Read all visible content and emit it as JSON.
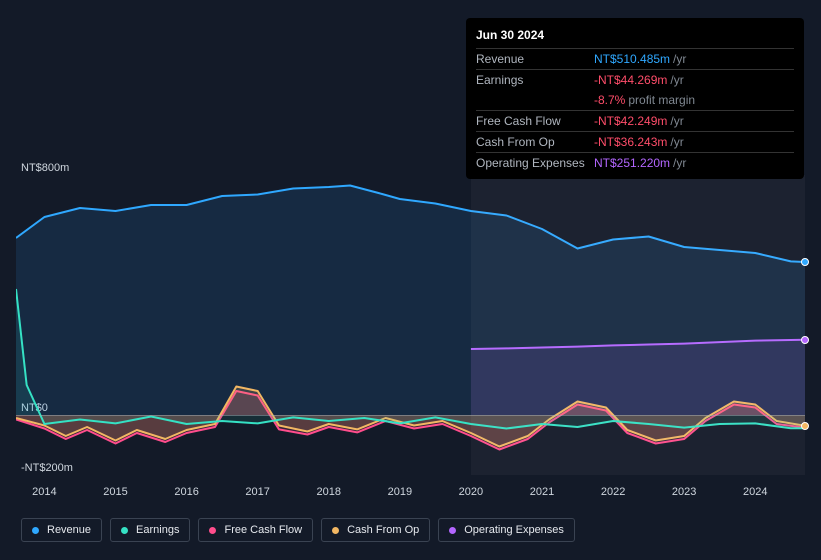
{
  "tooltip": {
    "date": "Jun 30 2024",
    "rows": [
      {
        "label": "Revenue",
        "value": "NT$510.485m",
        "suffix": "/yr",
        "color": "#2fa8ff"
      },
      {
        "label": "Earnings",
        "value": "-NT$44.269m",
        "suffix": "/yr",
        "color": "#ff4d6a",
        "sub": {
          "value": "-8.7%",
          "suffix": "profit margin",
          "color": "#ff4d6a"
        }
      },
      {
        "label": "Free Cash Flow",
        "value": "-NT$42.249m",
        "suffix": "/yr",
        "color": "#ff4d6a"
      },
      {
        "label": "Cash From Op",
        "value": "-NT$36.243m",
        "suffix": "/yr",
        "color": "#ff4d6a"
      },
      {
        "label": "Operating Expenses",
        "value": "NT$251.220m",
        "suffix": "/yr",
        "color": "#b366ff"
      }
    ]
  },
  "chart": {
    "type": "area",
    "background_color": "#131a28",
    "grid_color": "#2a3240",
    "text_color": "#cfd6de",
    "x_range": [
      2013.6,
      2024.7
    ],
    "y_range_m": [
      -200,
      800
    ],
    "y_ticks": [
      {
        "v": 800,
        "label": "NT$800m"
      },
      {
        "v": 0,
        "label": "NT$0"
      },
      {
        "v": -200,
        "label": "-NT$200m"
      }
    ],
    "x_ticks": [
      2014,
      2015,
      2016,
      2017,
      2018,
      2019,
      2020,
      2021,
      2022,
      2023,
      2024
    ],
    "highlight_band_x": [
      2020.0,
      2024.7
    ],
    "series": {
      "revenue": {
        "color": "#2fa8ff",
        "fill": "rgba(47,168,255,0.12)",
        "line_width": 2,
        "points": [
          [
            2013.6,
            590
          ],
          [
            2014.0,
            660
          ],
          [
            2014.5,
            690
          ],
          [
            2015.0,
            680
          ],
          [
            2015.5,
            700
          ],
          [
            2016.0,
            700
          ],
          [
            2016.5,
            730
          ],
          [
            2017.0,
            735
          ],
          [
            2017.5,
            755
          ],
          [
            2018.0,
            760
          ],
          [
            2018.3,
            765
          ],
          [
            2018.7,
            740
          ],
          [
            2019.0,
            720
          ],
          [
            2019.5,
            705
          ],
          [
            2020.0,
            680
          ],
          [
            2020.5,
            665
          ],
          [
            2021.0,
            620
          ],
          [
            2021.5,
            555
          ],
          [
            2022.0,
            585
          ],
          [
            2022.5,
            595
          ],
          [
            2023.0,
            560
          ],
          [
            2023.5,
            550
          ],
          [
            2024.0,
            540
          ],
          [
            2024.5,
            512
          ],
          [
            2024.7,
            510
          ]
        ]
      },
      "op_exp": {
        "color": "#b366ff",
        "fill": "rgba(179,102,255,0.12)",
        "line_width": 2,
        "points": [
          [
            2020.0,
            220
          ],
          [
            2020.5,
            222
          ],
          [
            2021.0,
            225
          ],
          [
            2021.5,
            228
          ],
          [
            2022.0,
            232
          ],
          [
            2022.5,
            235
          ],
          [
            2023.0,
            238
          ],
          [
            2023.5,
            243
          ],
          [
            2024.0,
            248
          ],
          [
            2024.5,
            250
          ],
          [
            2024.7,
            251
          ]
        ]
      },
      "earnings": {
        "color": "#35e1c4",
        "fill": "rgba(53,225,196,0.10)",
        "line_width": 2,
        "points": [
          [
            2013.6,
            420
          ],
          [
            2013.75,
            100
          ],
          [
            2014.0,
            -30
          ],
          [
            2014.5,
            -15
          ],
          [
            2015.0,
            -28
          ],
          [
            2015.5,
            -5
          ],
          [
            2016.0,
            -30
          ],
          [
            2016.5,
            -20
          ],
          [
            2017.0,
            -28
          ],
          [
            2017.5,
            -8
          ],
          [
            2018.0,
            -20
          ],
          [
            2018.5,
            -10
          ],
          [
            2019.0,
            -28
          ],
          [
            2019.5,
            -8
          ],
          [
            2020.0,
            -30
          ],
          [
            2020.5,
            -45
          ],
          [
            2021.0,
            -30
          ],
          [
            2021.5,
            -40
          ],
          [
            2022.0,
            -20
          ],
          [
            2022.5,
            -30
          ],
          [
            2023.0,
            -42
          ],
          [
            2023.5,
            -30
          ],
          [
            2024.0,
            -28
          ],
          [
            2024.5,
            -44
          ],
          [
            2024.7,
            -44
          ]
        ]
      },
      "cash_from_op": {
        "color": "#f2b763",
        "fill": "rgba(242,183,99,0.18)",
        "line_width": 2,
        "points": [
          [
            2013.6,
            -10
          ],
          [
            2014.0,
            -35
          ],
          [
            2014.3,
            -70
          ],
          [
            2014.6,
            -40
          ],
          [
            2015.0,
            -85
          ],
          [
            2015.3,
            -50
          ],
          [
            2015.7,
            -80
          ],
          [
            2016.0,
            -50
          ],
          [
            2016.4,
            -30
          ],
          [
            2016.7,
            95
          ],
          [
            2017.0,
            80
          ],
          [
            2017.3,
            -35
          ],
          [
            2017.7,
            -55
          ],
          [
            2018.0,
            -30
          ],
          [
            2018.4,
            -48
          ],
          [
            2018.8,
            -10
          ],
          [
            2019.2,
            -35
          ],
          [
            2019.6,
            -20
          ],
          [
            2020.0,
            -60
          ],
          [
            2020.4,
            -105
          ],
          [
            2020.8,
            -70
          ],
          [
            2021.1,
            -15
          ],
          [
            2021.5,
            45
          ],
          [
            2021.9,
            25
          ],
          [
            2022.2,
            -50
          ],
          [
            2022.6,
            -85
          ],
          [
            2023.0,
            -70
          ],
          [
            2023.3,
            -10
          ],
          [
            2023.7,
            45
          ],
          [
            2024.0,
            35
          ],
          [
            2024.3,
            -20
          ],
          [
            2024.7,
            -36
          ]
        ]
      },
      "fcf": {
        "color": "#ff4d8c",
        "fill": "rgba(255,77,140,0.15)",
        "line_width": 2,
        "points": [
          [
            2013.6,
            -15
          ],
          [
            2014.0,
            -45
          ],
          [
            2014.3,
            -80
          ],
          [
            2014.6,
            -50
          ],
          [
            2015.0,
            -95
          ],
          [
            2015.3,
            -60
          ],
          [
            2015.7,
            -90
          ],
          [
            2016.0,
            -60
          ],
          [
            2016.4,
            -40
          ],
          [
            2016.7,
            80
          ],
          [
            2017.0,
            65
          ],
          [
            2017.3,
            -48
          ],
          [
            2017.7,
            -65
          ],
          [
            2018.0,
            -40
          ],
          [
            2018.4,
            -58
          ],
          [
            2018.8,
            -20
          ],
          [
            2019.2,
            -45
          ],
          [
            2019.6,
            -30
          ],
          [
            2020.0,
            -70
          ],
          [
            2020.4,
            -115
          ],
          [
            2020.8,
            -80
          ],
          [
            2021.1,
            -25
          ],
          [
            2021.5,
            35
          ],
          [
            2021.9,
            15
          ],
          [
            2022.2,
            -60
          ],
          [
            2022.6,
            -95
          ],
          [
            2023.0,
            -80
          ],
          [
            2023.3,
            -20
          ],
          [
            2023.7,
            35
          ],
          [
            2024.0,
            25
          ],
          [
            2024.3,
            -30
          ],
          [
            2024.7,
            -42
          ]
        ]
      }
    },
    "end_dots": [
      {
        "series": "revenue",
        "color": "#2fa8ff"
      },
      {
        "series": "op_exp",
        "color": "#b366ff"
      },
      {
        "series": "cash_from_op",
        "color": "#f2b763"
      }
    ]
  },
  "legend": [
    {
      "label": "Revenue",
      "color": "#2fa8ff"
    },
    {
      "label": "Earnings",
      "color": "#35e1c4"
    },
    {
      "label": "Free Cash Flow",
      "color": "#ff4d8c"
    },
    {
      "label": "Cash From Op",
      "color": "#f2b763"
    },
    {
      "label": "Operating Expenses",
      "color": "#b366ff"
    }
  ]
}
